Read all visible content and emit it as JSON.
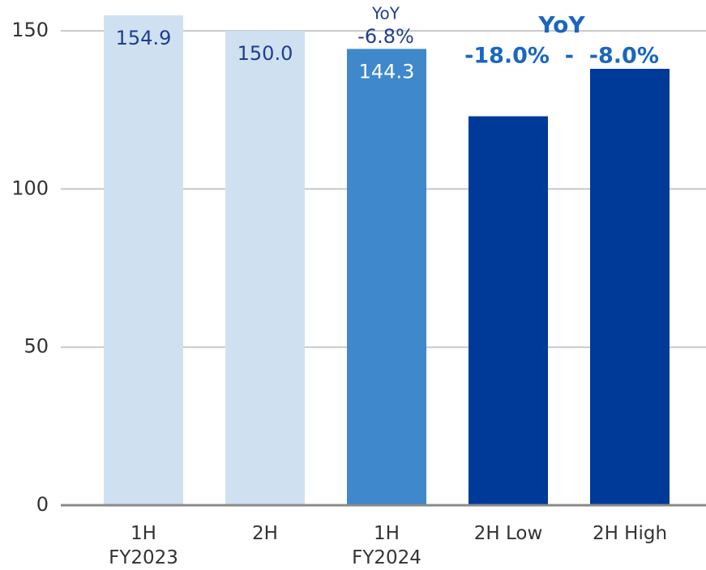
{
  "chart_data": {
    "type": "bar",
    "categories": [
      "1H\nFY2023",
      "2H",
      "1H\nFY2024",
      "2H Low",
      "2H High"
    ],
    "values": [
      154.9,
      150.0,
      144.3,
      123,
      138
    ],
    "value_labels": [
      "154.9",
      "150.0",
      "144.3",
      null,
      null
    ],
    "colors": [
      "#cfe0f1",
      "#cfe0f1",
      "#3f88cc",
      "#003a99",
      "#003a99"
    ],
    "ylim": [
      0,
      154.9
    ],
    "yticks": [
      0,
      50,
      100,
      150
    ],
    "grid": true,
    "annotations": [
      "YoY",
      "-6.8%",
      "YoY",
      "-18.0%  -  -8.0%"
    ]
  }
}
